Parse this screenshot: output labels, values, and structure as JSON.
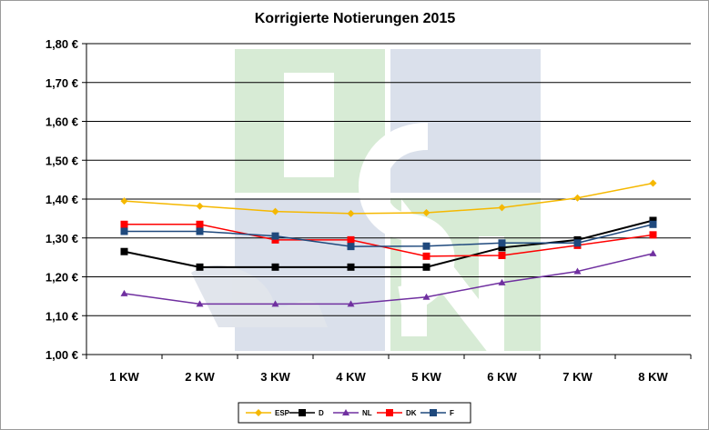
{
  "chart_data": {
    "type": "line",
    "title": "Korrigierte Notierungen 2015",
    "categories": [
      "1 KW",
      "2 KW",
      "3 KW",
      "4 KW",
      "5 KW",
      "6 KW",
      "7 KW",
      "8 KW"
    ],
    "ylim": [
      1.0,
      1.8
    ],
    "yticks": [
      {
        "value": 1.8,
        "label": "1,80 €"
      },
      {
        "value": 1.7,
        "label": "1,70 €"
      },
      {
        "value": 1.6,
        "label": "1,60 €"
      },
      {
        "value": 1.5,
        "label": "1,50 €"
      },
      {
        "value": 1.4,
        "label": "1,40 €"
      },
      {
        "value": 1.3,
        "label": "1,30 €"
      },
      {
        "value": 1.2,
        "label": "1,20 €"
      },
      {
        "value": 1.1,
        "label": "1,10 €"
      },
      {
        "value": 1.0,
        "label": "1,00 €"
      }
    ],
    "grid": true,
    "legend_position": "bottom",
    "watermark": "ISN",
    "series": [
      {
        "name": "ESP",
        "color": "#f5b800",
        "marker": "diamond",
        "values": [
          1.395,
          1.382,
          1.368,
          1.363,
          1.365,
          1.378,
          1.403,
          1.441
        ]
      },
      {
        "name": "D",
        "color": "#000000",
        "marker": "square",
        "values": [
          1.265,
          1.225,
          1.225,
          1.225,
          1.225,
          1.275,
          1.295,
          1.345
        ]
      },
      {
        "name": "NL",
        "color": "#7030a0",
        "marker": "triangle",
        "values": [
          1.157,
          1.13,
          1.13,
          1.13,
          1.148,
          1.185,
          1.214,
          1.26
        ]
      },
      {
        "name": "DK",
        "color": "#ff0000",
        "marker": "square",
        "values": [
          1.335,
          1.335,
          1.295,
          1.295,
          1.253,
          1.255,
          1.281,
          1.308
        ]
      },
      {
        "name": "F",
        "color": "#1f497d",
        "marker": "square",
        "values": [
          1.317,
          1.317,
          1.305,
          1.278,
          1.279,
          1.287,
          1.287,
          1.335
        ]
      }
    ]
  }
}
